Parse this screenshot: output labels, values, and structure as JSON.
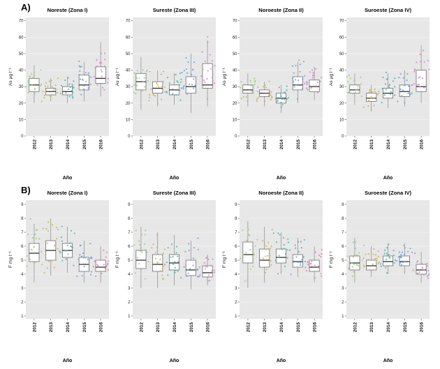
{
  "figure": {
    "background": "#ffffff"
  },
  "chart_data": [
    {
      "type": "boxplot",
      "row_label": "A)",
      "ylabel": "As µg l⁻¹",
      "xlabel": "Año",
      "ylim": [
        0,
        72
      ],
      "yticks": [
        0,
        10,
        20,
        30,
        40,
        50,
        60,
        70
      ],
      "categories": [
        "2012",
        "2013",
        "2014",
        "2015",
        "2016"
      ],
      "panel_bg": "#e7e7e7",
      "grid_color": "#f2f2f2",
      "point_colors": [
        "#9ccb86",
        "#c8b35a",
        "#4fb3a9",
        "#6f9fd8",
        "#d884c3"
      ],
      "points_per_box": 18,
      "panels": [
        {
          "title": "Noreste (Zona I)",
          "boxes": [
            {
              "low": 20,
              "q1": 27,
              "med": 31,
              "q3": 35,
              "high": 43
            },
            {
              "low": 21,
              "q1": 25,
              "med": 27,
              "q3": 29,
              "high": 35
            },
            {
              "low": 20,
              "q1": 25,
              "med": 27,
              "q3": 30,
              "high": 36
            },
            {
              "low": 21,
              "q1": 28,
              "med": 31,
              "q3": 37,
              "high": 45
            },
            {
              "low": 24,
              "q1": 32,
              "med": 35,
              "q3": 42,
              "high": 57
            }
          ]
        },
        {
          "title": "Sureste (Zona III)",
          "boxes": [
            {
              "low": 16,
              "q1": 28,
              "med": 33,
              "q3": 38,
              "high": 48
            },
            {
              "low": 18,
              "q1": 26,
              "med": 29,
              "q3": 33,
              "high": 40
            },
            {
              "low": 19,
              "q1": 25,
              "med": 28,
              "q3": 31,
              "high": 38
            },
            {
              "low": 14,
              "q1": 26,
              "med": 30,
              "q3": 36,
              "high": 50
            },
            {
              "low": 18,
              "q1": 29,
              "med": 31,
              "q3": 44,
              "high": 58
            }
          ]
        },
        {
          "title": "Noroeste (Zona II)",
          "boxes": [
            {
              "low": 18,
              "q1": 26,
              "med": 28,
              "q3": 31,
              "high": 38
            },
            {
              "low": 18,
              "q1": 24,
              "med": 26,
              "q3": 28,
              "high": 33
            },
            {
              "low": 14,
              "q1": 20,
              "med": 23,
              "q3": 26,
              "high": 31
            },
            {
              "low": 20,
              "q1": 28,
              "med": 31,
              "q3": 36,
              "high": 45
            },
            {
              "low": 22,
              "q1": 27,
              "med": 30,
              "q3": 34,
              "high": 42
            }
          ]
        },
        {
          "title": "Suroeste (Zona IV)",
          "boxes": [
            {
              "low": 19,
              "q1": 26,
              "med": 28,
              "q3": 31,
              "high": 38
            },
            {
              "low": 15,
              "q1": 21,
              "med": 23,
              "q3": 26,
              "high": 31
            },
            {
              "low": 17,
              "q1": 23,
              "med": 26,
              "q3": 29,
              "high": 38
            },
            {
              "low": 18,
              "q1": 24,
              "med": 27,
              "q3": 31,
              "high": 40
            },
            {
              "low": 20,
              "q1": 27,
              "med": 30,
              "q3": 40,
              "high": 55
            }
          ]
        }
      ]
    },
    {
      "type": "boxplot",
      "row_label": "B)",
      "ylabel": "F mg l⁻¹",
      "xlabel": "Año",
      "ylim": [
        0.8,
        9.3
      ],
      "yticks": [
        1,
        2,
        3,
        4,
        5,
        6,
        7,
        8,
        9
      ],
      "categories": [
        "2012",
        "2013",
        "2014",
        "2015",
        "2016"
      ],
      "panel_bg": "#e7e7e7",
      "grid_color": "#f2f2f2",
      "point_colors": [
        "#9ccb86",
        "#c8b35a",
        "#4fb3a9",
        "#6f9fd8",
        "#d884c3"
      ],
      "points_per_box": 18,
      "panels": [
        {
          "title": "Noreste (Zona I)",
          "boxes": [
            {
              "low": 3.4,
              "q1": 4.9,
              "med": 5.5,
              "q3": 6.2,
              "high": 7.6
            },
            {
              "low": 3.9,
              "q1": 5.0,
              "med": 5.7,
              "q3": 6.4,
              "high": 8.0
            },
            {
              "low": 4.1,
              "q1": 5.2,
              "med": 5.7,
              "q3": 6.2,
              "high": 7.4
            },
            {
              "low": 3.4,
              "q1": 4.2,
              "med": 4.7,
              "q3": 5.2,
              "high": 6.4
            },
            {
              "low": 3.4,
              "q1": 4.2,
              "med": 4.5,
              "q3": 5.0,
              "high": 6.0
            }
          ]
        },
        {
          "title": "Sureste (Zona III)",
          "boxes": [
            {
              "low": 3.0,
              "q1": 4.4,
              "med": 5.0,
              "q3": 5.7,
              "high": 7.4
            },
            {
              "low": 3.0,
              "q1": 4.2,
              "med": 4.7,
              "q3": 5.4,
              "high": 7.0
            },
            {
              "low": 3.2,
              "q1": 4.3,
              "med": 4.8,
              "q3": 5.4,
              "high": 6.8
            },
            {
              "low": 2.9,
              "q1": 3.9,
              "med": 4.3,
              "q3": 5.0,
              "high": 6.4
            },
            {
              "low": 3.2,
              "q1": 3.8,
              "med": 4.1,
              "q3": 4.6,
              "high": 5.4
            }
          ]
        },
        {
          "title": "Noroeste (Zona II)",
          "boxes": [
            {
              "low": 3.0,
              "q1": 4.8,
              "med": 5.4,
              "q3": 6.3,
              "high": 7.8
            },
            {
              "low": 3.4,
              "q1": 4.5,
              "med": 5.0,
              "q3": 5.8,
              "high": 7.4
            },
            {
              "low": 4.0,
              "q1": 4.8,
              "med": 5.2,
              "q3": 5.8,
              "high": 7.0
            },
            {
              "low": 3.8,
              "q1": 4.5,
              "med": 4.9,
              "q3": 5.4,
              "high": 6.6
            },
            {
              "low": 3.4,
              "q1": 4.2,
              "med": 4.5,
              "q3": 5.0,
              "high": 6.0
            }
          ]
        },
        {
          "title": "Suroeste (Zona IV)",
          "boxes": [
            {
              "low": 3.4,
              "q1": 4.3,
              "med": 4.8,
              "q3": 5.3,
              "high": 6.6
            },
            {
              "low": 3.8,
              "q1": 4.3,
              "med": 4.6,
              "q3": 5.0,
              "high": 6.0
            },
            {
              "low": 4.0,
              "q1": 4.6,
              "med": 4.9,
              "q3": 5.3,
              "high": 6.2
            },
            {
              "low": 4.0,
              "q1": 4.6,
              "med": 4.9,
              "q3": 5.3,
              "high": 6.2
            },
            {
              "low": 3.4,
              "q1": 4.0,
              "med": 4.3,
              "q3": 4.7,
              "high": 5.6
            }
          ]
        }
      ]
    }
  ]
}
